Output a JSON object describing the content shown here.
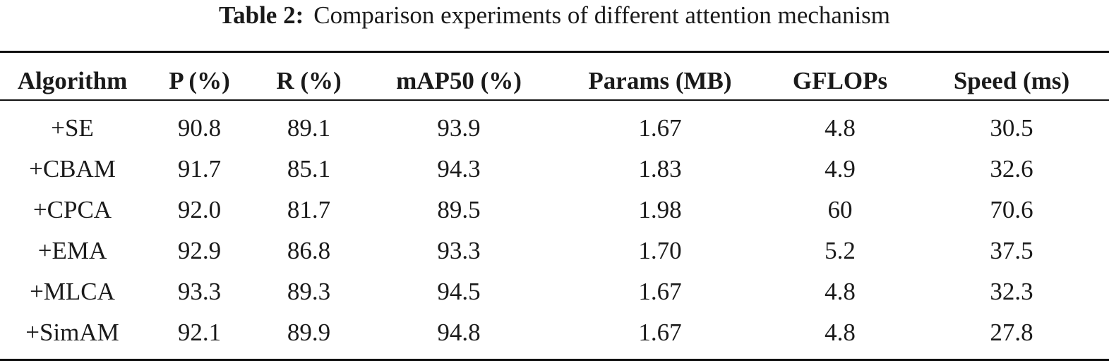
{
  "caption": {
    "label": "Table 2:",
    "text": "Comparison experiments of different attention mechanism"
  },
  "table": {
    "headers": [
      "Algorithm",
      "P (%)",
      "R (%)",
      "mAP50 (%)",
      "Params (MB)",
      "GFLOPs",
      "Speed (ms)"
    ],
    "rows": [
      [
        "+SE",
        "90.8",
        "89.1",
        "93.9",
        "1.67",
        "4.8",
        "30.5"
      ],
      [
        "+CBAM",
        "91.7",
        "85.1",
        "94.3",
        "1.83",
        "4.9",
        "32.6"
      ],
      [
        "+CPCA",
        "92.0",
        "81.7",
        "89.5",
        "1.98",
        "60",
        "70.6"
      ],
      [
        "+EMA",
        "92.9",
        "86.8",
        "93.3",
        "1.70",
        "5.2",
        "37.5"
      ],
      [
        "+MLCA",
        "93.3",
        "89.3",
        "94.5",
        "1.67",
        "4.8",
        "32.3"
      ],
      [
        "+SimAM",
        "92.1",
        "89.9",
        "94.8",
        "1.67",
        "4.8",
        "27.8"
      ]
    ]
  }
}
